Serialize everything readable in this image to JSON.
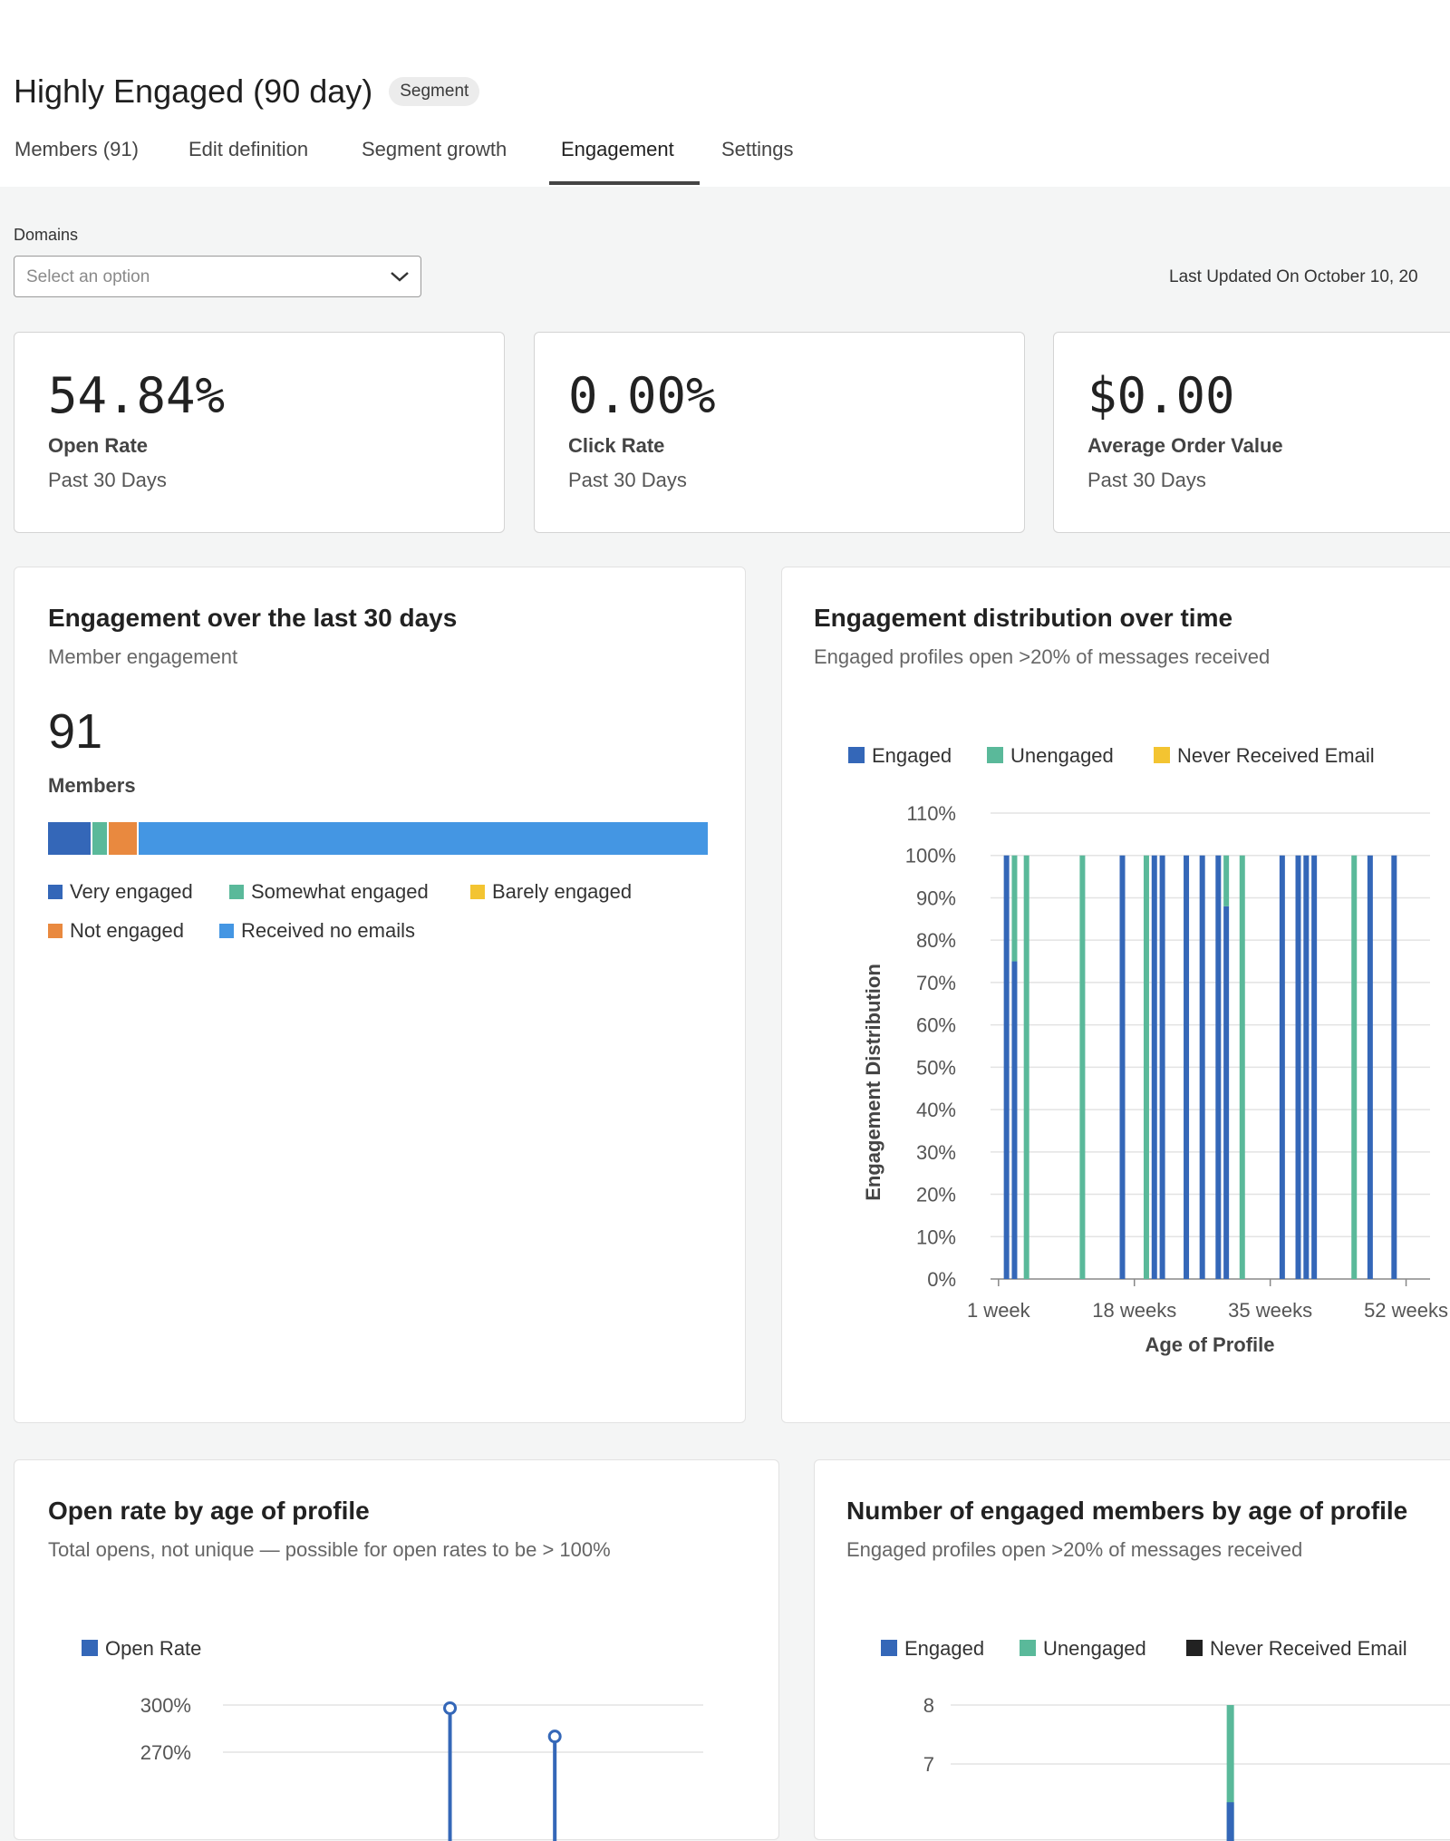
{
  "page": {
    "title": "Highly Engaged (90 day)",
    "badge": "Segment"
  },
  "tabs": [
    {
      "label": "Members (91)",
      "active": false
    },
    {
      "label": "Edit definition",
      "active": false
    },
    {
      "label": "Segment growth",
      "active": false
    },
    {
      "label": "Engagement",
      "active": true
    },
    {
      "label": "Settings",
      "active": false
    }
  ],
  "filters": {
    "domains_label": "Domains",
    "domains_placeholder": "Select an option",
    "last_updated": "Last Updated On October 10, 20"
  },
  "kpis": [
    {
      "value": "54.84%",
      "label": "Open Rate",
      "period": "Past 30 Days"
    },
    {
      "value": "0.00%",
      "label": "Click Rate",
      "period": "Past 30 Days"
    },
    {
      "value": "$0.00",
      "label": "Average Order Value",
      "period": "Past 30 Days"
    }
  ],
  "engagement_card": {
    "title": "Engagement over the last 30 days",
    "subtitle": "Member engagement",
    "count": "91",
    "count_label": "Members",
    "bar_segments": [
      {
        "name": "Very engaged",
        "fraction": 0.065,
        "color": "#3467b8"
      },
      {
        "name": "Somewhat engaged",
        "fraction": 0.022,
        "color": "#5ab99a"
      },
      {
        "name": "Barely engaged",
        "fraction": 0.0,
        "color": "#f3c431"
      },
      {
        "name": "Not engaged",
        "fraction": 0.043,
        "color": "#e9893f"
      },
      {
        "name": "Received no emails",
        "fraction": 0.87,
        "color": "#4496e3"
      }
    ],
    "legend": [
      {
        "label": "Very engaged",
        "color": "#3467b8"
      },
      {
        "label": "Somewhat engaged",
        "color": "#5ab99a"
      },
      {
        "label": "Barely engaged",
        "color": "#f3c431"
      },
      {
        "label": "Not engaged",
        "color": "#e9893f"
      },
      {
        "label": "Received no emails",
        "color": "#4496e3"
      }
    ]
  },
  "distribution_card": {
    "title": "Engagement distribution over time",
    "subtitle": "Engaged profiles open >20% of messages received"
  },
  "open_rate_card": {
    "title": "Open rate by age of profile",
    "subtitle": "Total opens, not unique — possible for open rates to be > 100%"
  },
  "engaged_members_card": {
    "title": "Number of engaged members by age of profile",
    "subtitle": "Engaged profiles open >20% of messages received"
  },
  "chart_data": [
    {
      "type": "bar",
      "title": "Engagement distribution over time",
      "xlabel": "Age of Profile",
      "ylabel": "Engagement Distribution",
      "ylim": [
        0,
        110
      ],
      "yticks": [
        "0%",
        "10%",
        "20%",
        "30%",
        "40%",
        "50%",
        "60%",
        "70%",
        "80%",
        "90%",
        "100%",
        "110%"
      ],
      "xlim": [
        0,
        55
      ],
      "xticks": [
        {
          "week": 1,
          "label": "1 week"
        },
        {
          "week": 18,
          "label": "18 weeks"
        },
        {
          "week": 35,
          "label": "35 weeks"
        },
        {
          "week": 52,
          "label": "52 weeks"
        }
      ],
      "legend": [
        {
          "name": "Engaged",
          "color": "#3467b8"
        },
        {
          "name": "Unengaged",
          "color": "#5ab99a"
        },
        {
          "name": "Never Received Email",
          "color": "#f3c431"
        }
      ],
      "grid": true,
      "bars": [
        {
          "week": 2,
          "engaged": 100,
          "unengaged": 0
        },
        {
          "week": 3,
          "engaged": 75,
          "unengaged": 25
        },
        {
          "week": 4.5,
          "engaged": 0,
          "unengaged": 100
        },
        {
          "week": 11.5,
          "engaged": 0,
          "unengaged": 100
        },
        {
          "week": 16.5,
          "engaged": 100,
          "unengaged": 0
        },
        {
          "week": 19.5,
          "engaged": 0,
          "unengaged": 100
        },
        {
          "week": 20.5,
          "engaged": 100,
          "unengaged": 0
        },
        {
          "week": 21.5,
          "engaged": 100,
          "unengaged": 0
        },
        {
          "week": 24.5,
          "engaged": 100,
          "unengaged": 0
        },
        {
          "week": 26.5,
          "engaged": 100,
          "unengaged": 0
        },
        {
          "week": 28.5,
          "engaged": 100,
          "unengaged": 0
        },
        {
          "week": 29.5,
          "engaged": 88,
          "unengaged": 12
        },
        {
          "week": 31.5,
          "engaged": 0,
          "unengaged": 100
        },
        {
          "week": 36.5,
          "engaged": 100,
          "unengaged": 0
        },
        {
          "week": 38.5,
          "engaged": 100,
          "unengaged": 0
        },
        {
          "week": 39.5,
          "engaged": 100,
          "unengaged": 0
        },
        {
          "week": 40.5,
          "engaged": 100,
          "unengaged": 0
        },
        {
          "week": 45.5,
          "engaged": 0,
          "unengaged": 100
        },
        {
          "week": 47.5,
          "engaged": 100,
          "unengaged": 0
        },
        {
          "week": 50.5,
          "engaged": 100,
          "unengaged": 0
        }
      ]
    },
    {
      "type": "scatter",
      "title": "Open rate by age of profile",
      "legend": [
        {
          "name": "Open Rate",
          "color": "#3467b8"
        }
      ],
      "yticks": [
        "300%",
        "270%"
      ],
      "ylim": [
        250,
        310
      ],
      "xlim": [
        0,
        55
      ],
      "grid": true,
      "points": [
        {
          "week": 26,
          "value": 298
        },
        {
          "week": 38,
          "value": 280
        }
      ]
    },
    {
      "type": "bar",
      "title": "Number of engaged members by age of profile",
      "legend": [
        {
          "name": "Engaged",
          "color": "#3467b8"
        },
        {
          "name": "Unengaged",
          "color": "#5ab99a"
        },
        {
          "name": "Never Received Email",
          "color": "#222222"
        }
      ],
      "yticks": [
        "8",
        "7"
      ],
      "ylim": [
        6,
        9
      ],
      "xlim": [
        0,
        55
      ],
      "grid": true,
      "bars": [
        {
          "week": 35,
          "engaged": 6.35,
          "unengaged": 8.0
        }
      ]
    }
  ]
}
